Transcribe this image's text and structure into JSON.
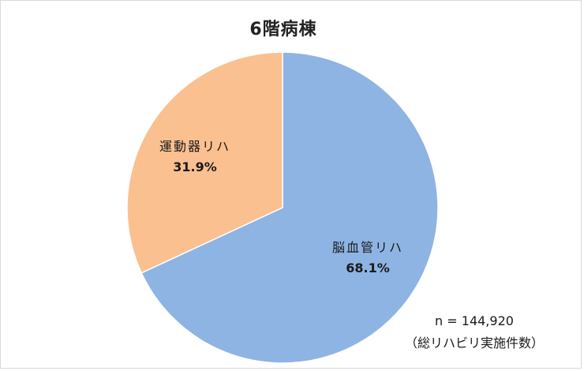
{
  "chart_data": {
    "type": "pie",
    "title": "6階病棟",
    "slices": [
      {
        "label": "脳血管リハ",
        "value": 68.1,
        "value_label": "68.1%",
        "color": "#8EB4E3"
      },
      {
        "label": "運動器リハ",
        "value": 31.9,
        "value_label": "31.9%",
        "color": "#FAC090"
      }
    ],
    "annotation": {
      "n": "n = 144,920",
      "note": "（総リハビリ実施件数）"
    },
    "legend": "none"
  }
}
